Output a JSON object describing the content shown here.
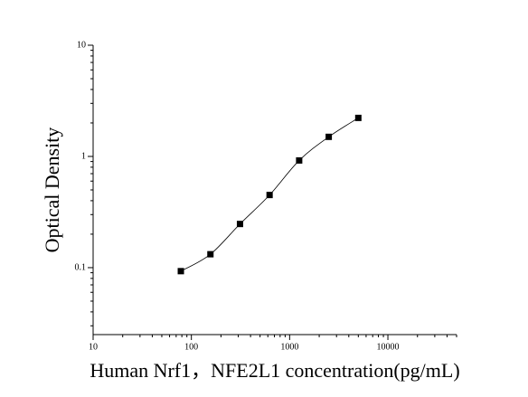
{
  "chart_data": {
    "type": "scatter",
    "x_label": "Human Nrf1，NFE2L1 concentration(pg/mL)",
    "y_label": "Optical Density",
    "x": [
      78.125,
      156.25,
      312.5,
      625,
      1250,
      2500,
      5000
    ],
    "values": [
      0.093,
      0.132,
      0.247,
      0.45,
      0.92,
      1.5,
      2.22
    ],
    "color": "#000000",
    "xlog": true,
    "ylog": true,
    "xlim": [
      10,
      50000
    ],
    "ylim": [
      0.025,
      10
    ],
    "xticks": [
      10,
      100,
      1000,
      10000
    ],
    "yticks": [
      0.1,
      1,
      10
    ]
  }
}
